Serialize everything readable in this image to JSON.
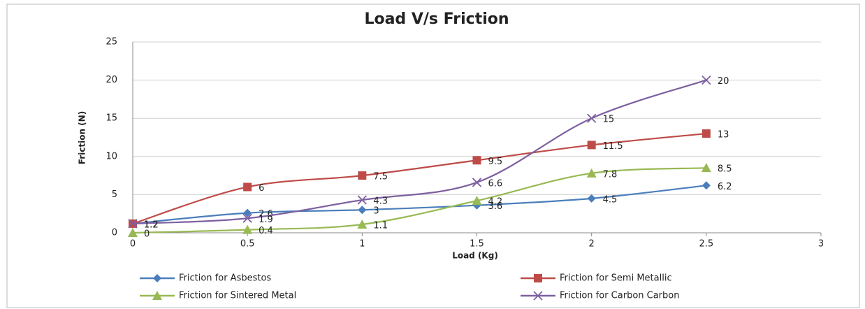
{
  "chart_data": {
    "type": "line",
    "title": "Load V/s Friction",
    "x_label": "Load (Kg)",
    "y_label": "Friction (N)",
    "x": [
      0,
      0.5,
      1,
      1.5,
      2,
      2.5
    ],
    "series": [
      {
        "name": "Friction for Asbestos",
        "color": "#4a7ebb",
        "marker": "diamond",
        "values": [
          1.2,
          2.6,
          3,
          3.6,
          4.5,
          6.2
        ]
      },
      {
        "name": "Friction for Semi Metallic",
        "color": "#be4b48",
        "marker": "square",
        "values": [
          1.2,
          6,
          7.5,
          9.5,
          11.5,
          13
        ]
      },
      {
        "name": "Friction for Sintered Metal",
        "color": "#98b954",
        "marker": "triangle",
        "values": [
          0,
          0.4,
          1.1,
          4.2,
          7.8,
          8.5
        ]
      },
      {
        "name": "Friction  for Carbon Carbon",
        "color": "#7d60a0",
        "marker": "x",
        "values": [
          1.2,
          1.9,
          4.3,
          6.6,
          15,
          20
        ]
      }
    ],
    "xlim": [
      0,
      3
    ],
    "xticks": [
      0,
      0.5,
      1,
      1.5,
      2,
      2.5,
      3
    ],
    "ylim": [
      0,
      25
    ],
    "yticks": [
      0,
      5,
      10,
      15,
      20,
      25
    ],
    "grid": true,
    "smooth": true,
    "legend": "bottom"
  }
}
